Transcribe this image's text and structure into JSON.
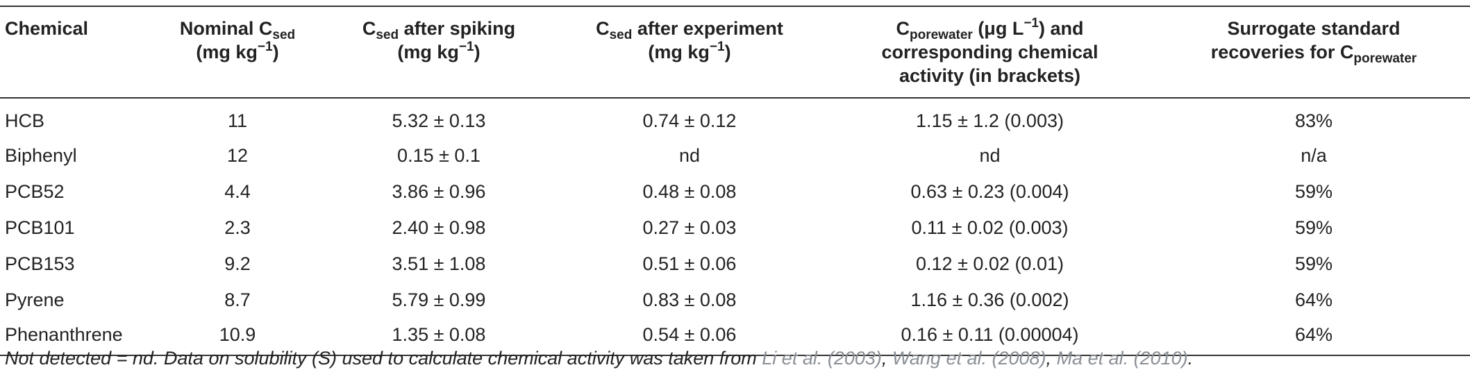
{
  "table": {
    "headers": [
      {
        "l1": "Chemical"
      },
      {
        "l1_pre": "Nominal C",
        "l1_sub": "sed",
        "l2_pre": "(mg kg",
        "l2_sup": "−1",
        "l2_post": ")"
      },
      {
        "l1_pre": "C",
        "l1_sub": "sed",
        "l1_post": " after spiking",
        "l2_pre": "(mg kg",
        "l2_sup": "−1",
        "l2_post": ")"
      },
      {
        "l1_pre": "C",
        "l1_sub": "sed",
        "l1_post": " after experiment",
        "l2_pre": "(mg kg",
        "l2_sup": "−1",
        "l2_post": ")"
      },
      {
        "l1_pre": "C",
        "l1_sub": "porewater",
        "l1_mid": " (μg L",
        "l1_sup": "−1",
        "l1_post": ") and",
        "l2": "corresponding chemical",
        "l3": "activity (in brackets)"
      },
      {
        "l1": "Surrogate standard",
        "l2_pre": "recoveries for C",
        "l2_sub": "porewater"
      }
    ],
    "rows": [
      [
        "HCB",
        "11",
        "5.32 ± 0.13",
        "0.74 ± 0.12",
        "1.15 ± 1.2 (0.003)",
        "83%"
      ],
      [
        "Biphenyl",
        "12",
        "0.15 ± 0.1",
        "nd",
        "nd",
        "n/a"
      ],
      [
        "PCB52",
        "4.4",
        "3.86 ± 0.96",
        "0.48 ± 0.08",
        "0.63 ± 0.23 (0.004)",
        "59%"
      ],
      [
        "PCB101",
        "2.3",
        "2.40 ± 0.98",
        "0.27 ± 0.03",
        "0.11 ± 0.02 (0.003)",
        "59%"
      ],
      [
        "PCB153",
        "9.2",
        "3.51 ± 1.08",
        "0.51 ± 0.06",
        "0.12 ± 0.02 (0.01)",
        "59%"
      ],
      [
        "Pyrene",
        "8.7",
        "5.79 ± 0.99",
        "0.83 ± 0.08",
        "1.16 ± 0.36 (0.002)",
        "64%"
      ],
      [
        "Phenanthrene",
        "10.9",
        "1.35 ± 0.08",
        "0.54 ± 0.06",
        "0.16 ± 0.11 (0.00004)",
        "64%"
      ]
    ]
  },
  "footnote": {
    "text": "Not detected = nd. Data on solubility (S) used to calculate chemical activity was taken from ",
    "ref1": "Li et al. (2003)",
    "sep1": ", ",
    "ref2": "Wang et al. (2008)",
    "sep2": ", ",
    "ref3": "Ma et al. (2010)",
    "end": "."
  },
  "colors": {
    "text": "#222222",
    "reference_link": "#8a8f96",
    "rule": "#333333"
  }
}
